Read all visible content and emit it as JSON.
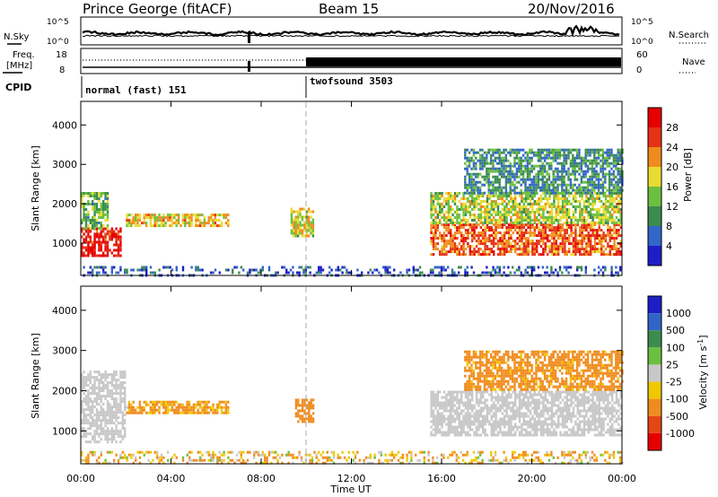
{
  "header": {
    "station": "Prince George (fitACF)",
    "beam": "Beam 15",
    "date": "20/Nov/2016"
  },
  "strips": {
    "nsky_label": "N.Sky",
    "nsky_ticks": [
      "10^5",
      "10^0"
    ],
    "nsearch_label": "N.Search",
    "nsearch_ticks": [
      "10^5",
      "10^0"
    ],
    "freq_label_1": "Freq.",
    "freq_label_2": "[MHz]",
    "freq_ticks": [
      "18",
      "8"
    ],
    "nave_label": "Nave",
    "nave_ticks": [
      "60",
      "0"
    ],
    "cpid_label": "CPID",
    "modes": [
      {
        "name": "normal (fast) 151",
        "start_hour": 0
      },
      {
        "name": "twofsound 3503",
        "start_hour": 10
      }
    ]
  },
  "x_axis": {
    "ticks": [
      "00:00",
      "04:00",
      "08:00",
      "12:00",
      "16:00",
      "20:00",
      "00:00"
    ],
    "label": "Time UT"
  },
  "colors": {
    "power": [
      "#1e1ec8",
      "#3266c8",
      "#3c8c50",
      "#6cc040",
      "#e8dc32",
      "#f08c1e",
      "#e63214",
      "#e60000"
    ],
    "velocity": [
      "#1e1ec8",
      "#3264c8",
      "#3c8c50",
      "#6cc040",
      "#c8c8c8",
      "#f0c800",
      "#f08c1e",
      "#e64614",
      "#e60000"
    ],
    "ground_scatter": "#c8c8c8"
  },
  "chart_data": [
    {
      "type": "heatmap",
      "title": "",
      "xlabel": "Time UT",
      "ylabel": "Slant Range [km]",
      "xlim_hours": [
        0,
        24
      ],
      "ylim_km": [
        180,
        4600
      ],
      "y_ticks": [
        "1000",
        "2000",
        "3000",
        "4000"
      ],
      "colorbar": {
        "label": "Power [dB]",
        "ticks": [
          "4",
          "8",
          "12",
          "16",
          "20",
          "24",
          "28"
        ],
        "range": [
          0,
          30
        ]
      },
      "echo_regions": [
        {
          "hours": [
            0.0,
            1.8
          ],
          "km": [
            700,
            1400
          ],
          "power_db": 27
        },
        {
          "hours": [
            0.0,
            1.2
          ],
          "km": [
            1400,
            2300
          ],
          "power_db": 12
        },
        {
          "hours": [
            2.0,
            6.5
          ],
          "km": [
            1450,
            1750
          ],
          "power_db": 18
        },
        {
          "hours": [
            9.3,
            10.3
          ],
          "km": [
            1200,
            1900
          ],
          "power_db": 16
        },
        {
          "hours": [
            15.5,
            24.0
          ],
          "km": [
            700,
            1500
          ],
          "power_db": 23
        },
        {
          "hours": [
            15.5,
            24.0
          ],
          "km": [
            1500,
            2300
          ],
          "power_db": 15
        },
        {
          "hours": [
            17.0,
            24.0
          ],
          "km": [
            2300,
            3400
          ],
          "power_db": 9
        },
        {
          "hours": [
            0.0,
            24.0
          ],
          "km": [
            180,
            420
          ],
          "power_db": 5
        }
      ]
    },
    {
      "type": "heatmap",
      "title": "",
      "xlabel": "Time UT",
      "ylabel": "Slant Range [km]",
      "xlim_hours": [
        0,
        24
      ],
      "ylim_km": [
        180,
        4600
      ],
      "y_ticks": [
        "1000",
        "2000",
        "3000",
        "4000"
      ],
      "colorbar": {
        "label": "Velocity [m s^-1]",
        "ticks": [
          "1000",
          "500",
          "100",
          "25",
          "-25",
          "-100",
          "-500",
          "-1000"
        ]
      },
      "echo_regions": [
        {
          "hours": [
            0.0,
            2.0
          ],
          "km": [
            700,
            2500
          ],
          "velocity_ms": 0,
          "ground_scatter": true
        },
        {
          "hours": [
            2.0,
            6.5
          ],
          "km": [
            1450,
            1750
          ],
          "velocity_ms": -150
        },
        {
          "hours": [
            9.5,
            10.3
          ],
          "km": [
            1200,
            1800
          ],
          "velocity_ms": -300
        },
        {
          "hours": [
            15.5,
            24.0
          ],
          "km": [
            900,
            2000
          ],
          "velocity_ms": 0,
          "ground_scatter": true
        },
        {
          "hours": [
            17.0,
            24.0
          ],
          "km": [
            2000,
            3000
          ],
          "velocity_ms": -200
        },
        {
          "hours": [
            0.0,
            24.0
          ],
          "km": [
            180,
            500
          ],
          "velocity_ms": -80
        }
      ]
    }
  ]
}
